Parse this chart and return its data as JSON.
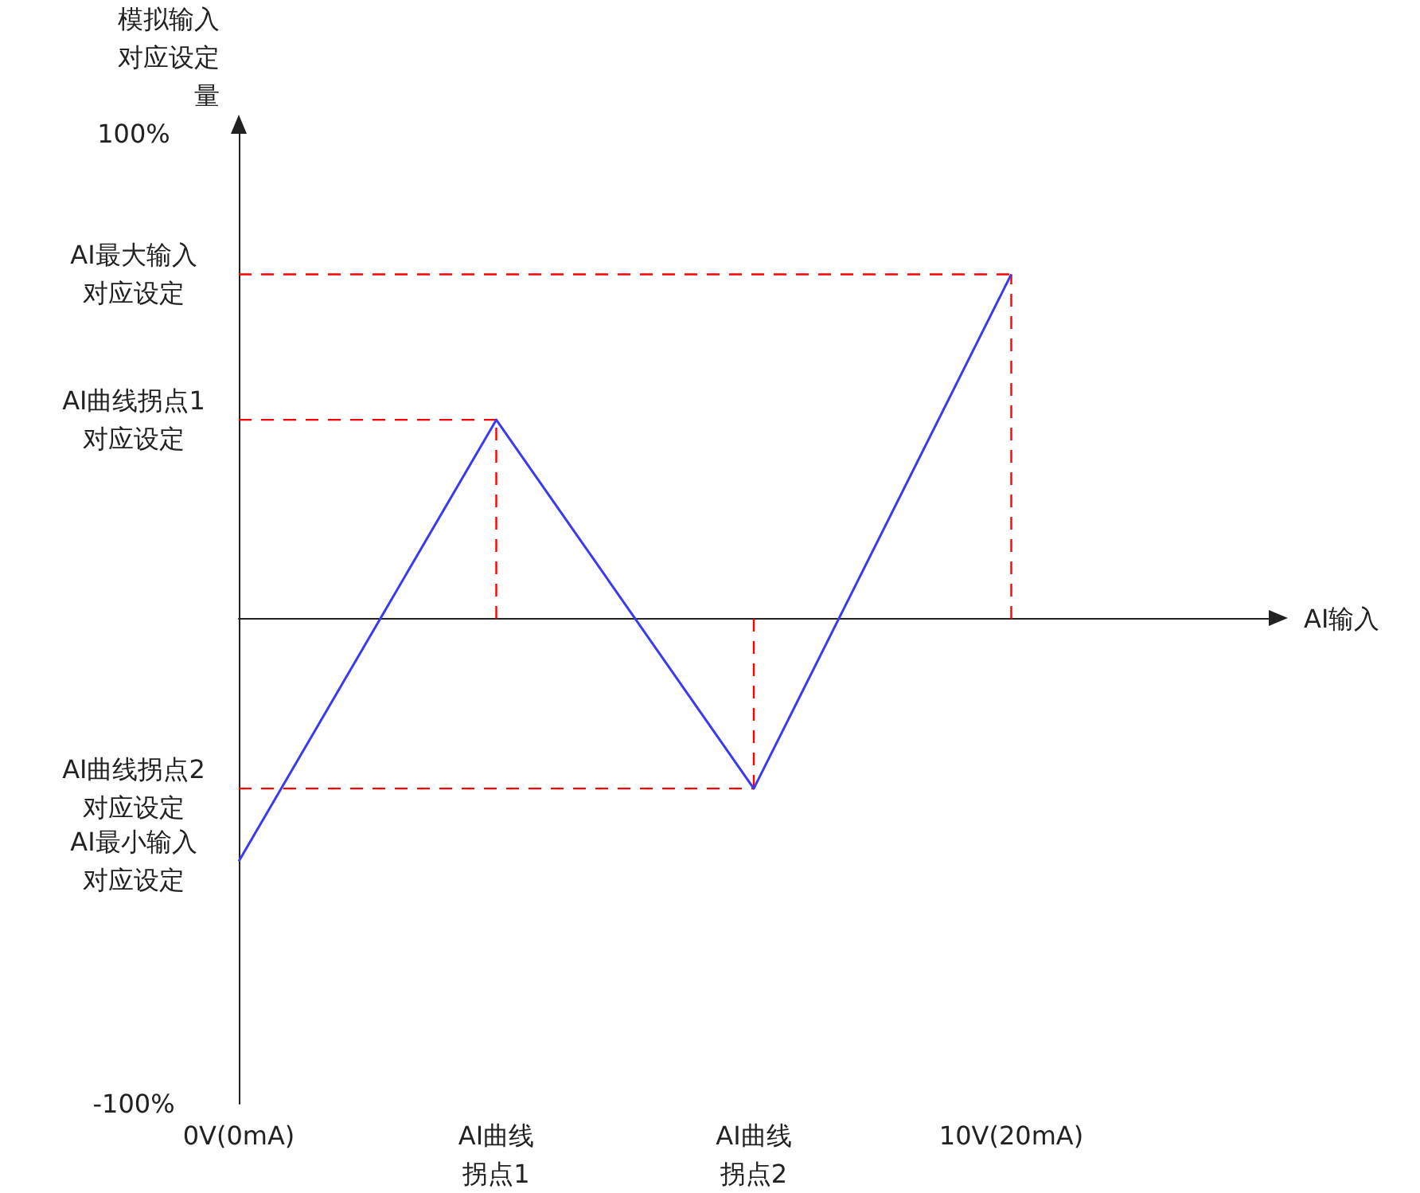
{
  "chart_data": {
    "type": "line",
    "ylabel": "模拟输入对应设定量",
    "xlabel": "AI输入",
    "categories": [
      "0V(0mA)",
      "AI曲线拐点1",
      "AI曲线拐点2",
      "10V(20mA)",
      null
    ],
    "series": [
      {
        "color": "#3a3af0",
        "values": [
          -50,
          41,
          -35,
          71,
          null
        ]
      }
    ],
    "ylim": [
      -100,
      100
    ],
    "yticks": [
      {
        "value": -100,
        "label": "-100%"
      },
      {
        "value": -50,
        "label": "AI最小输入对应设定"
      },
      {
        "value": -35,
        "label": "AI曲线拐点2对应设定"
      },
      {
        "value": 41,
        "label": "AI曲线拐点1对应设定"
      },
      {
        "value": 71,
        "label": "AI最大输入对应设定"
      },
      {
        "value": 100,
        "label": "100%"
      }
    ],
    "ref_lines": [
      {
        "axis": "y",
        "value": 71,
        "color": "#ff0000",
        "line_style": "dashed"
      },
      {
        "axis": "y",
        "value": 41,
        "color": "#ff0000",
        "line_style": "dashed"
      },
      {
        "axis": "y",
        "value": -35,
        "color": "#ff0000",
        "line_style": "dashed"
      },
      {
        "axis": "x",
        "value": "AI曲线拐点1",
        "color": "#ff0000",
        "line_style": "dashed"
      },
      {
        "axis": "x",
        "value": "AI曲线拐点2",
        "color": "#ff0000",
        "line_style": "dashed"
      },
      {
        "axis": "x",
        "value": "10V(20mA)",
        "color": "#ff0000",
        "line_style": "dashed"
      }
    ],
    "marker": "none",
    "grid": false
  }
}
